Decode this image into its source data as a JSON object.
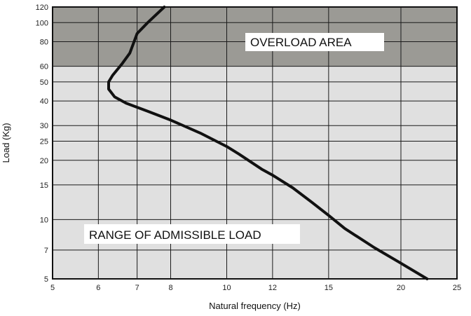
{
  "chart_data": {
    "type": "line",
    "title": "",
    "xlabel": "Natural frequency (Hz)",
    "ylabel": "Load (Kg)",
    "x_scale": "log",
    "y_scale": "log",
    "xlim": [
      5,
      25
    ],
    "ylim": [
      5,
      120
    ],
    "x_ticks": [
      5,
      6,
      7,
      8,
      10,
      12,
      15,
      20,
      25
    ],
    "y_ticks": [
      5,
      7,
      10,
      15,
      20,
      25,
      30,
      40,
      50,
      60,
      80,
      100,
      120
    ],
    "grid": true,
    "regions": [
      {
        "label": "OVERLOAD AREA",
        "y_range": [
          60,
          120
        ],
        "color": "#9b9a95"
      },
      {
        "label": "RANGE OF ADMISSIBLE LOAD",
        "y_range": [
          5,
          60
        ],
        "color": "#e0e0e0"
      }
    ],
    "series": [
      {
        "color": "#111111",
        "points": [
          [
            22.2,
            5
          ],
          [
            20,
            6
          ],
          [
            18,
            7.2
          ],
          [
            16,
            9
          ],
          [
            15,
            10.5
          ],
          [
            14,
            12.3
          ],
          [
            13,
            14.5
          ],
          [
            12,
            16.8
          ],
          [
            11.5,
            18
          ],
          [
            10.5,
            21.5
          ],
          [
            10,
            23.5
          ],
          [
            9,
            27.5
          ],
          [
            8,
            32
          ],
          [
            7.3,
            35.5
          ],
          [
            6.7,
            39
          ],
          [
            6.4,
            42
          ],
          [
            6.25,
            46
          ],
          [
            6.25,
            50
          ],
          [
            6.35,
            54
          ],
          [
            6.6,
            62
          ],
          [
            6.8,
            70
          ],
          [
            7.0,
            88
          ],
          [
            7.3,
            100
          ],
          [
            7.8,
            120
          ]
        ]
      }
    ]
  }
}
